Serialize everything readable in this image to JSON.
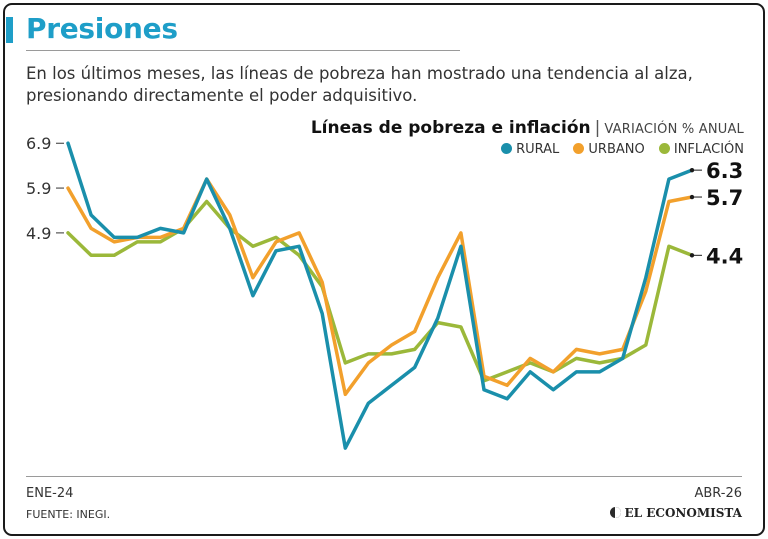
{
  "header": {
    "title": "Presiones",
    "subtitle": "En los últimos meses, las líneas de pobreza han mostrado una tendencia al alza, presionando directamente el poder adquisitivo."
  },
  "chart_data": {
    "type": "line",
    "title": "Líneas de pobreza e inflación",
    "unit_label": "VARIACIÓN % ANUAL",
    "x_start_label": "ENE-24",
    "x_end_label": "ABR-26",
    "yticks": [
      4.9,
      5.9,
      6.9
    ],
    "ytick_labels": [
      "4.9",
      "5.9",
      "6.9"
    ],
    "ylim": [
      -0.3,
      6.95
    ],
    "legend_position": "top-right",
    "grid": false,
    "series": [
      {
        "name": "RURAL",
        "color": "#1a8fab",
        "end_label": "6.3",
        "values": [
          6.9,
          5.3,
          4.8,
          4.8,
          5.0,
          4.9,
          6.1,
          5.0,
          3.5,
          4.5,
          4.6,
          3.1,
          0.1,
          1.1,
          1.5,
          1.9,
          3.0,
          4.6,
          1.4,
          1.2,
          1.8,
          1.4,
          1.8,
          1.8,
          2.1,
          3.9,
          6.1,
          6.3
        ]
      },
      {
        "name": "URBANO",
        "color": "#f2a02c",
        "end_label": "5.7",
        "values": [
          5.9,
          5.0,
          4.7,
          4.8,
          4.8,
          5.0,
          6.1,
          5.3,
          3.9,
          4.7,
          4.9,
          3.8,
          1.3,
          2.0,
          2.4,
          2.7,
          3.9,
          4.9,
          1.7,
          1.5,
          2.1,
          1.8,
          2.3,
          2.2,
          2.3,
          3.6,
          5.6,
          5.7
        ]
      },
      {
        "name": "INFLACIÓN",
        "color": "#9bb83a",
        "end_label": "4.4",
        "values": [
          4.9,
          4.4,
          4.4,
          4.7,
          4.7,
          5.0,
          5.6,
          5.0,
          4.6,
          4.8,
          4.4,
          3.7,
          2.0,
          2.2,
          2.2,
          2.3,
          2.9,
          2.8,
          1.6,
          1.8,
          2.0,
          1.8,
          2.1,
          2.0,
          2.1,
          2.4,
          4.6,
          4.4
        ]
      }
    ]
  },
  "footer": {
    "source": "FUENTE: INEGI.",
    "brand": "EL ECONOMISTA"
  }
}
